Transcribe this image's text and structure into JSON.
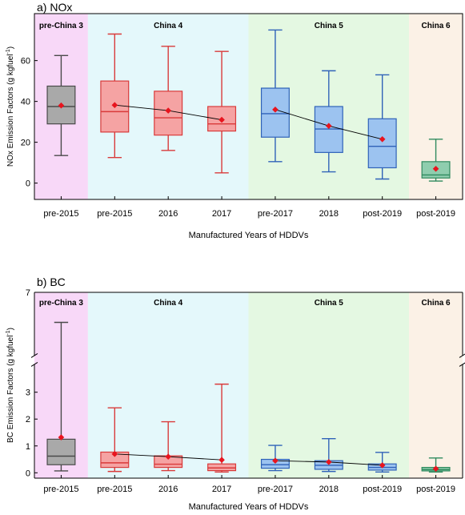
{
  "chart_data": [
    {
      "type": "box",
      "panel_label": "a) NOx",
      "ylabel": "NOx Emission Factors (g kgfuel",
      "ylabel_sup": "-1",
      "ylabel_tail": ")",
      "xlabel": "Manufactured Years of HDDVs",
      "ylim": [
        -8,
        83
      ],
      "yticks": [
        0,
        20,
        40,
        60
      ],
      "tick_labels": [
        "0",
        "20",
        "40",
        "60"
      ],
      "eras": [
        {
          "name": "pre-China 3",
          "color": "#f8d8f8",
          "start": 0,
          "end": 1
        },
        {
          "name": "China 4",
          "color": "#e4f8fb",
          "start": 1,
          "end": 4
        },
        {
          "name": "China 5",
          "color": "#e4f8e2",
          "start": 4,
          "end": 7
        },
        {
          "name": "China 6",
          "color": "#fbf1e6",
          "start": 7,
          "end": 8
        }
      ],
      "categories": [
        "pre-2015",
        "pre-2015",
        "2016",
        "2017",
        "pre-2017",
        "2018",
        "post-2019",
        "post-2019"
      ],
      "boxes": [
        {
          "min": 13.5,
          "q1": 29,
          "median": 37.5,
          "q3": 47.5,
          "max": 62.5,
          "mean": 38,
          "fill": "#a9a9a9",
          "stroke": "#4a4a4a"
        },
        {
          "min": 12.5,
          "q1": 25,
          "median": 35,
          "q3": 50,
          "max": 73,
          "mean": 38.2,
          "fill": "#f5a3a3",
          "stroke": "#d93a3a"
        },
        {
          "min": 16,
          "q1": 23.5,
          "median": 32,
          "q3": 45,
          "max": 67,
          "mean": 35.5,
          "fill": "#f5a3a3",
          "stroke": "#d93a3a"
        },
        {
          "min": 5,
          "q1": 25.5,
          "median": 29,
          "q3": 37.5,
          "max": 64.5,
          "mean": 31,
          "fill": "#f5a3a3",
          "stroke": "#d93a3a"
        },
        {
          "min": 10.5,
          "q1": 22.5,
          "median": 34,
          "q3": 46.5,
          "max": 75,
          "mean": 36,
          "fill": "#9cc3f0",
          "stroke": "#2f62b8"
        },
        {
          "min": 5.5,
          "q1": 15,
          "median": 26.5,
          "q3": 37.5,
          "max": 55,
          "mean": 28,
          "fill": "#9cc3f0",
          "stroke": "#2f62b8"
        },
        {
          "min": 2,
          "q1": 7.5,
          "median": 18,
          "q3": 31.5,
          "max": 53,
          "mean": 21.5,
          "fill": "#9cc3f0",
          "stroke": "#2f62b8"
        },
        {
          "min": 1,
          "q1": 2.5,
          "median": 4,
          "q3": 10.5,
          "max": 21.5,
          "mean": 7,
          "fill": "#8fcdae",
          "stroke": "#2f8a5e"
        }
      ],
      "mean_line_groups": [
        [
          1,
          2,
          3
        ],
        [
          4,
          5,
          6
        ]
      ],
      "grid": false
    },
    {
      "type": "box",
      "panel_label": "b) BC",
      "ylabel": "BC Emission Factors (g kgfuel",
      "ylabel_sup": "-1",
      "ylabel_tail": ")",
      "xlabel": "Manufactured Years of HDDVs",
      "ylim": [
        -0.2,
        7
      ],
      "yticks": [
        0,
        1,
        2,
        3,
        7
      ],
      "tick_labels": [
        "0",
        "1",
        "2",
        "3",
        "7"
      ],
      "axis_break": [
        4.05,
        4.35
      ],
      "eras": [
        {
          "name": "pre-China 3",
          "color": "#f8d8f8",
          "start": 0,
          "end": 1
        },
        {
          "name": "China 4",
          "color": "#e4f8fb",
          "start": 1,
          "end": 4
        },
        {
          "name": "China 5",
          "color": "#e4f8e2",
          "start": 4,
          "end": 7
        },
        {
          "name": "China 6",
          "color": "#fbf1e6",
          "start": 7,
          "end": 8
        }
      ],
      "categories": [
        "pre-2015",
        "pre-2015",
        "2016",
        "2017",
        "pre-2017",
        "2018",
        "post-2019",
        "post-2019"
      ],
      "boxes": [
        {
          "min": 0.07,
          "q1": 0.3,
          "median": 0.62,
          "q3": 1.25,
          "max": 5.6,
          "mean": 1.32,
          "fill": "#a9a9a9",
          "stroke": "#4a4a4a"
        },
        {
          "min": 0.05,
          "q1": 0.2,
          "median": 0.37,
          "q3": 0.77,
          "max": 2.42,
          "mean": 0.7,
          "fill": "#f5a3a3",
          "stroke": "#d93a3a"
        },
        {
          "min": 0.08,
          "q1": 0.2,
          "median": 0.32,
          "q3": 0.63,
          "max": 1.9,
          "mean": 0.6,
          "fill": "#f5a3a3",
          "stroke": "#d93a3a"
        },
        {
          "min": 0.03,
          "q1": 0.08,
          "median": 0.18,
          "q3": 0.33,
          "max": 3.3,
          "mean": 0.48,
          "fill": "#f5a3a3",
          "stroke": "#d93a3a"
        },
        {
          "min": 0.08,
          "q1": 0.17,
          "median": 0.3,
          "q3": 0.5,
          "max": 1.02,
          "mean": 0.45,
          "fill": "#9cc3f0",
          "stroke": "#2f62b8"
        },
        {
          "min": 0.05,
          "q1": 0.13,
          "median": 0.28,
          "q3": 0.45,
          "max": 1.27,
          "mean": 0.4,
          "fill": "#9cc3f0",
          "stroke": "#2f62b8"
        },
        {
          "min": 0.03,
          "q1": 0.1,
          "median": 0.2,
          "q3": 0.33,
          "max": 0.76,
          "mean": 0.28,
          "fill": "#9cc3f0",
          "stroke": "#2f62b8"
        },
        {
          "min": 0.03,
          "q1": 0.07,
          "median": 0.12,
          "q3": 0.2,
          "max": 0.55,
          "mean": 0.15,
          "fill": "#8fcdae",
          "stroke": "#2f8a5e"
        }
      ],
      "mean_line_groups": [
        [
          1,
          2,
          3
        ],
        [
          4,
          5,
          6
        ]
      ],
      "grid": false
    }
  ],
  "colors": {
    "mean_marker": "#e8141e",
    "connector_line": "#000000"
  }
}
